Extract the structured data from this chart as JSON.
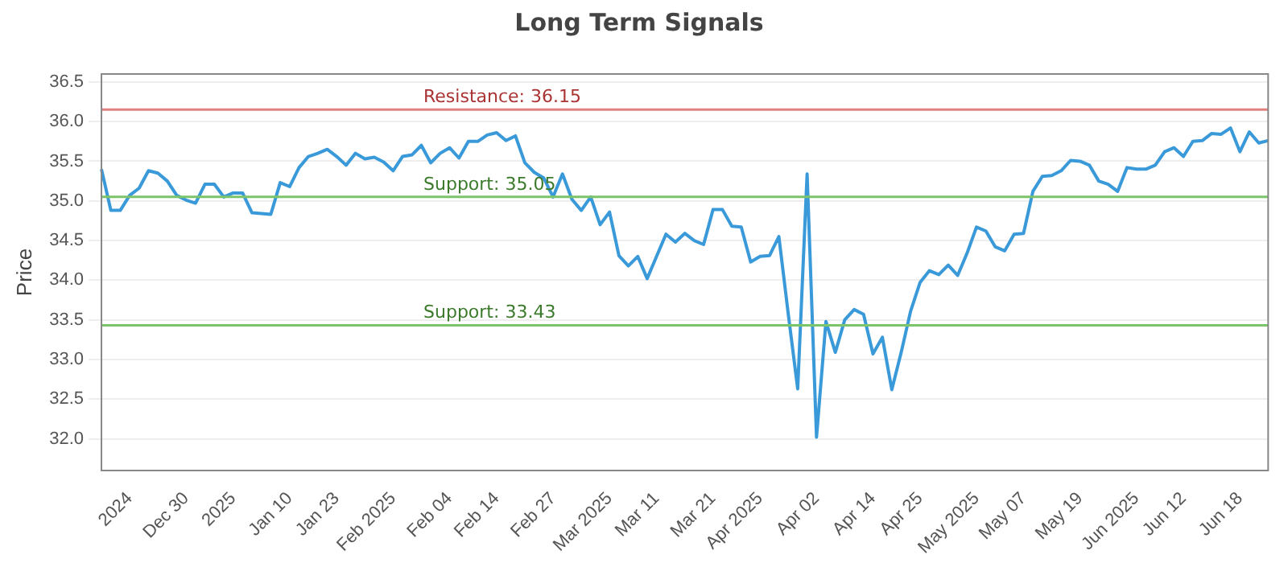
{
  "chart_data": {
    "type": "line",
    "title": "Long Term Signals",
    "ylabel": "Price",
    "categories": [
      null,
      null,
      null,
      "2024",
      null,
      null,
      null,
      null,
      null,
      "Dec 30",
      null,
      null,
      null,
      null,
      "2025",
      null,
      null,
      null,
      null,
      null,
      "Jan 10",
      null,
      null,
      null,
      null,
      "Jan 23",
      null,
      null,
      null,
      null,
      null,
      "Feb 2025",
      null,
      null,
      null,
      null,
      null,
      "Feb 04",
      null,
      null,
      null,
      null,
      "Feb 14",
      null,
      null,
      null,
      null,
      null,
      "Feb 27",
      null,
      null,
      null,
      null,
      null,
      "Mar 2025",
      null,
      null,
      null,
      null,
      "Mar 11",
      null,
      null,
      null,
      null,
      null,
      "Mar 21",
      null,
      null,
      null,
      null,
      "Apr 2025",
      null,
      null,
      null,
      null,
      null,
      "Apr 02",
      null,
      null,
      null,
      null,
      null,
      "Apr 14",
      null,
      null,
      null,
      null,
      "Apr 25",
      null,
      null,
      null,
      null,
      null,
      "May 2025",
      null,
      null,
      null,
      null,
      "May 07",
      null,
      null,
      null,
      null,
      null,
      "May 19",
      null,
      null,
      null,
      null,
      null,
      "Jun 2025",
      null,
      null,
      null,
      null,
      "Jun 12",
      null,
      null,
      null,
      null,
      null,
      "Jun 18",
      null,
      null,
      null
    ],
    "series": [
      {
        "color": "#3a9ad9",
        "values": [
          35.4,
          34.88,
          34.88,
          35.07,
          35.16,
          35.38,
          35.35,
          35.25,
          35.07,
          35.01,
          34.97,
          35.21,
          35.21,
          35.05,
          35.1,
          35.1,
          34.85,
          34.84,
          34.83,
          35.23,
          35.18,
          35.42,
          35.56,
          35.6,
          35.65,
          35.56,
          35.45,
          35.6,
          35.53,
          35.55,
          35.49,
          35.38,
          35.56,
          35.58,
          35.7,
          35.48,
          35.6,
          35.67,
          35.54,
          35.75,
          35.75,
          35.83,
          35.86,
          35.76,
          35.82,
          35.48,
          35.36,
          35.29,
          35.05,
          35.34,
          35.02,
          34.88,
          35.05,
          34.7,
          34.86,
          34.31,
          34.18,
          34.3,
          34.02,
          34.3,
          34.58,
          34.48,
          34.59,
          34.5,
          34.45,
          34.89,
          34.89,
          34.68,
          34.67,
          34.23,
          34.3,
          34.31,
          34.55,
          33.57,
          32.63,
          35.34,
          32.02,
          33.48,
          33.09,
          33.5,
          33.63,
          33.57,
          33.07,
          33.28,
          32.62,
          33.09,
          33.61,
          33.97,
          34.12,
          34.07,
          34.19,
          34.06,
          34.34,
          34.67,
          34.62,
          34.42,
          34.37,
          34.58,
          34.59,
          35.12,
          35.31,
          35.32,
          35.38,
          35.51,
          35.5,
          35.45,
          35.25,
          35.21,
          35.12,
          35.42,
          35.4,
          35.4,
          35.45,
          35.62,
          35.67,
          35.56,
          35.75,
          35.76,
          35.85,
          35.84,
          35.92,
          35.62,
          35.87,
          35.73,
          35.76
        ]
      }
    ],
    "ylim": [
      31.6,
      36.6
    ],
    "yticks": [
      {
        "value": 32,
        "label": "32.0"
      },
      {
        "value": 32.5,
        "label": "32.5"
      },
      {
        "value": 33,
        "label": "33.0"
      },
      {
        "value": 33.5,
        "label": "33.5"
      },
      {
        "value": 34,
        "label": "34.0"
      },
      {
        "value": 34.5,
        "label": "34.5"
      },
      {
        "value": 35,
        "label": "35.0"
      },
      {
        "value": 35.5,
        "label": "35.5"
      },
      {
        "value": 36,
        "label": "36.0"
      },
      {
        "value": 36.5,
        "label": "36.5"
      }
    ],
    "grid": "y",
    "marker": "none",
    "line_style": "solid",
    "legend": false,
    "ref_lines": [
      {
        "axis": "y",
        "value": 36.15,
        "label": "Resistance: 36.15",
        "color": "#e08080"
      },
      {
        "axis": "y",
        "value": 35.05,
        "label": "Support: 35.05",
        "color": "#7cc46a"
      },
      {
        "axis": "y",
        "value": 33.43,
        "label": "Support: 33.43",
        "color": "#7cc46a"
      }
    ]
  }
}
